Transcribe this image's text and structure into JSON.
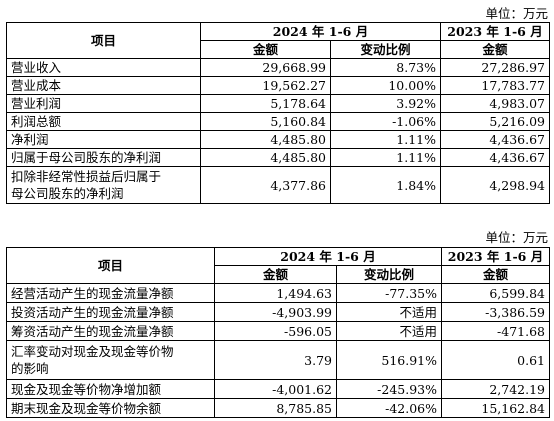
{
  "unit1": "单位：万元",
  "table1": {
    "header": {
      "item": "项目",
      "period2024": "2024 年 1-6 月",
      "period2023": "2023 年 1-6 月",
      "amount2024": "金额",
      "change": "变动比例",
      "amount2023": "金额"
    },
    "rows": [
      [
        "营业收入",
        "29,668.99",
        "8.73%",
        "27,286.97"
      ],
      [
        "营业成本",
        "19,562.27",
        "10.00%",
        "17,783.77"
      ],
      [
        "营业利润",
        "5,178.64",
        "3.92%",
        "4,983.07"
      ],
      [
        "利润总额",
        "5,160.84",
        "-1.06%",
        "5,216.09"
      ],
      [
        "净利润",
        "4,485.80",
        "1.11%",
        "4,436.67"
      ],
      [
        "归属于母公司股东的净利润",
        "4,485.80",
        "1.11%",
        "4,436.67"
      ],
      [
        "扣除非经常性损益后归属于母公司股东的净利润",
        "4,377.86",
        "1.84%",
        "4,298.94"
      ]
    ]
  },
  "unit2": "单位：万元",
  "table2": {
    "header": {
      "item": "项目",
      "period2024": "2024 年 1-6 月",
      "period2023": "2023 年 1-6 月",
      "amount2024": "金额",
      "change": "变动比例",
      "amount2023": "金额"
    },
    "rows": [
      [
        "经营活动产生的现金流量净额",
        "1,494.63",
        "-77.35%",
        "6,599.84"
      ],
      [
        "投资活动产生的现金流量净额",
        "-4,903.99",
        "不适用",
        "-3,386.59"
      ],
      [
        "筹资活动产生的现金流量净额",
        "-596.05",
        "不适用",
        "-471.68"
      ],
      [
        "汇率变动对现金及现金等价物的影响",
        "3.79",
        "516.91%",
        "0.61"
      ],
      [
        "现金及现金等价物净增加额",
        "-4,001.62",
        "-245.93%",
        "2,742.19"
      ],
      [
        "期末现金及现金等价物余额",
        "8,785.85",
        "-42.06%",
        "15,162.84"
      ]
    ]
  }
}
